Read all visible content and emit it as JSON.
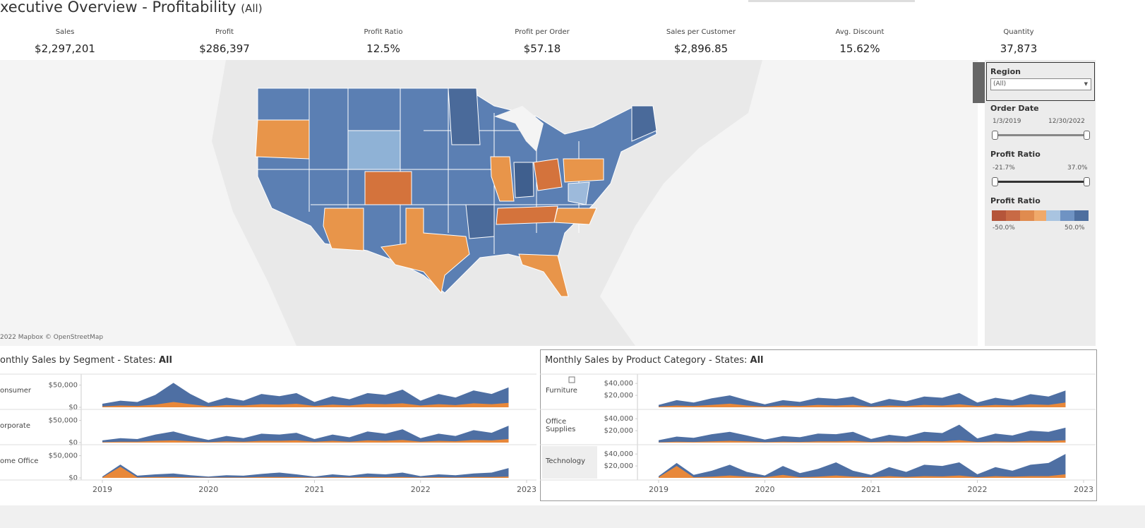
{
  "header": {
    "title": "xecutive Overview - Profitability",
    "filter_label": "(All)"
  },
  "kpis": [
    {
      "label": "Sales",
      "value": "$2,297,201"
    },
    {
      "label": "Profit",
      "value": "$286,397"
    },
    {
      "label": "Profit Ratio",
      "value": "12.5%"
    },
    {
      "label": "Profit per Order",
      "value": "$57.18"
    },
    {
      "label": "Sales per Customer",
      "value": "$2,896.85"
    },
    {
      "label": "Avg. Discount",
      "value": "15.62%"
    },
    {
      "label": "Quantity",
      "value": "37,873"
    }
  ],
  "map": {
    "attribution": "2022 Mapbox © OpenStreetMap"
  },
  "filters": {
    "region": {
      "label": "Region",
      "value": "(All)"
    },
    "order_date": {
      "label": "Order Date",
      "min": "1/3/2019",
      "max": "12/30/2022"
    },
    "profit_ratio": {
      "label": "Profit Ratio",
      "min": "-21.7%",
      "max": "37.0%"
    },
    "legend": {
      "label": "Profit Ratio",
      "min": "-50.0%",
      "max": "50.0%"
    }
  },
  "chart_data": [
    {
      "type": "area",
      "title": "onthly Sales by Segment - States: ",
      "title_emphasis": "All",
      "x": [
        2019,
        2019.17,
        2019.33,
        2019.5,
        2019.67,
        2019.83,
        2020,
        2020.17,
        2020.33,
        2020.5,
        2020.67,
        2020.83,
        2021,
        2021.17,
        2021.33,
        2021.5,
        2021.67,
        2021.83,
        2022,
        2022.17,
        2022.33,
        2022.5,
        2022.67,
        2022.83
      ],
      "xlim": [
        2019,
        2023
      ],
      "xticks": [
        2019,
        2020,
        2021,
        2022,
        2023
      ],
      "rows": [
        {
          "label": "onsumer",
          "ylim": [
            0,
            70000
          ],
          "yticks": [
            {
              "value": 50000,
              "label": "$50,000"
            },
            {
              "value": 0,
              "label": "$0"
            }
          ],
          "series": [
            {
              "color": "#4e6fa3",
              "values": [
                8000,
                15000,
                12000,
                28000,
                55000,
                30000,
                10000,
                22000,
                15000,
                30000,
                25000,
                32000,
                12000,
                25000,
                18000,
                32000,
                28000,
                40000,
                15000,
                30000,
                22000,
                38000,
                30000,
                45000
              ]
            },
            {
              "color": "#e8883a",
              "values": [
                2000,
                4000,
                3000,
                6000,
                12000,
                7000,
                2000,
                5000,
                4000,
                7000,
                6000,
                8000,
                3000,
                6000,
                4000,
                8000,
                7000,
                9000,
                4000,
                7000,
                5000,
                9000,
                7000,
                10000
              ]
            }
          ]
        },
        {
          "label": "orporate",
          "ylim": [
            0,
            70000
          ],
          "yticks": [
            {
              "value": 50000,
              "label": "$50,000"
            },
            {
              "value": 0,
              "label": "$0"
            }
          ],
          "series": [
            {
              "color": "#4e6fa3",
              "values": [
                5000,
                10000,
                8000,
                18000,
                25000,
                15000,
                6000,
                15000,
                10000,
                20000,
                18000,
                22000,
                8000,
                18000,
                12000,
                25000,
                20000,
                30000,
                10000,
                20000,
                15000,
                28000,
                22000,
                38000
              ]
            },
            {
              "color": "#e8883a",
              "values": [
                1000,
                2000,
                2000,
                4000,
                5000,
                3000,
                1000,
                3000,
                2000,
                4000,
                4000,
                5000,
                2000,
                4000,
                2000,
                5000,
                4000,
                6000,
                2000,
                4000,
                3000,
                6000,
                5000,
                8000
              ]
            }
          ]
        },
        {
          "label": "ome Office",
          "ylim": [
            0,
            70000
          ],
          "yticks": [
            {
              "value": 50000,
              "label": "$50,000"
            },
            {
              "value": 0,
              "label": "$0"
            }
          ],
          "series": [
            {
              "color": "#4e6fa3",
              "values": [
                3000,
                30000,
                5000,
                8000,
                10000,
                6000,
                3000,
                6000,
                5000,
                9000,
                12000,
                8000,
                3000,
                8000,
                5000,
                10000,
                8000,
                12000,
                4000,
                8000,
                6000,
                10000,
                12000,
                22000
              ]
            },
            {
              "color": "#e8883a",
              "values": [
                1000,
                25000,
                1000,
                2000,
                2000,
                1000,
                500,
                1000,
                1000,
                2000,
                2000,
                1500,
                500,
                1500,
                1000,
                2000,
                1500,
                2000,
                800,
                1500,
                1000,
                2000,
                2000,
                3000
              ]
            }
          ]
        }
      ]
    },
    {
      "type": "area",
      "title": "Monthly Sales by Product Category - States: ",
      "title_emphasis": "All",
      "x": [
        2019,
        2019.17,
        2019.33,
        2019.5,
        2019.67,
        2019.83,
        2020,
        2020.17,
        2020.33,
        2020.5,
        2020.67,
        2020.83,
        2021,
        2021.17,
        2021.33,
        2021.5,
        2021.67,
        2021.83,
        2022,
        2022.17,
        2022.33,
        2022.5,
        2022.67,
        2022.83
      ],
      "xlim": [
        2019,
        2023
      ],
      "xticks": [
        2019,
        2020,
        2021,
        2022,
        2023
      ],
      "rows": [
        {
          "label": "Furniture",
          "ylim": [
            0,
            52000
          ],
          "yticks": [
            {
              "value": 40000,
              "label": "$40,000"
            },
            {
              "value": 20000,
              "label": "$20,000"
            }
          ],
          "series": [
            {
              "color": "#4e6fa3",
              "values": [
                4000,
                12000,
                8000,
                15000,
                20000,
                12000,
                5000,
                12000,
                9000,
                16000,
                14000,
                18000,
                6000,
                14000,
                10000,
                18000,
                16000,
                24000,
                8000,
                16000,
                12000,
                22000,
                18000,
                28000
              ]
            },
            {
              "color": "#e8883a",
              "values": [
                1000,
                3000,
                2000,
                4000,
                6000,
                3000,
                1000,
                3000,
                2000,
                4000,
                3000,
                4000,
                1000,
                3000,
                2000,
                4000,
                3000,
                5000,
                2000,
                4000,
                3000,
                5000,
                4000,
                8000
              ]
            }
          ]
        },
        {
          "label": "Office Supplies",
          "ylim": [
            0,
            52000
          ],
          "yticks": [
            {
              "value": 40000,
              "label": "$40,000"
            },
            {
              "value": 20000,
              "label": "$20,000"
            }
          ],
          "series": [
            {
              "color": "#4e6fa3",
              "values": [
                4000,
                10000,
                8000,
                14000,
                18000,
                12000,
                5000,
                11000,
                9000,
                15000,
                14000,
                18000,
                6000,
                13000,
                10000,
                18000,
                16000,
                30000,
                7000,
                15000,
                12000,
                20000,
                18000,
                25000
              ]
            },
            {
              "color": "#e8883a",
              "values": [
                500,
                1500,
                1000,
                2000,
                3000,
                2000,
                800,
                1500,
                1000,
                2000,
                2000,
                3000,
                1000,
                2000,
                1500,
                2500,
                2000,
                4000,
                1000,
                2000,
                1500,
                3000,
                2500,
                4000
              ]
            }
          ]
        },
        {
          "label": "Technology",
          "ylim": [
            0,
            52000
          ],
          "yticks": [
            {
              "value": 40000,
              "label": "$40,000"
            },
            {
              "value": 20000,
              "label": "$20,000"
            }
          ],
          "series": [
            {
              "color": "#4e6fa3",
              "values": [
                3000,
                25000,
                5000,
                12000,
                22000,
                10000,
                4000,
                20000,
                8000,
                15000,
                26000,
                12000,
                5000,
                18000,
                10000,
                22000,
                20000,
                26000,
                6000,
                18000,
                12000,
                22000,
                25000,
                40000
              ]
            },
            {
              "color": "#e8883a",
              "values": [
                1000,
                20000,
                1000,
                2000,
                4000,
                2000,
                1000,
                5000,
                1000,
                2000,
                4000,
                2000,
                1000,
                3000,
                1500,
                3000,
                2500,
                4000,
                1000,
                3000,
                2000,
                3000,
                3000,
                6000
              ]
            }
          ]
        }
      ]
    }
  ]
}
